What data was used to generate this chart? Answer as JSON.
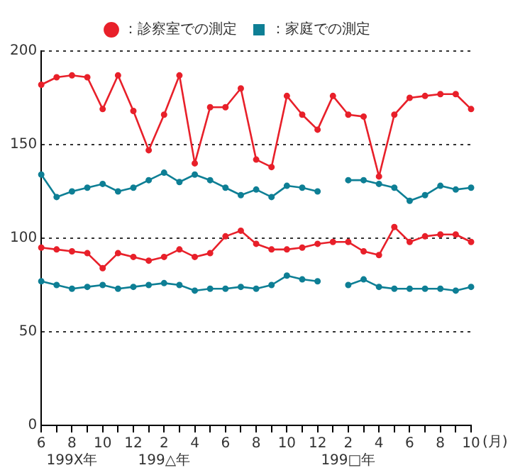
{
  "chart_data": {
    "type": "line",
    "categories": [
      "6",
      null,
      "8\n199X年",
      null,
      "10",
      null,
      "12",
      null,
      "2\n199△年",
      null,
      "4",
      null,
      "6",
      null,
      "8",
      null,
      "10",
      null,
      "12",
      null,
      "2\n199□年",
      null,
      "4",
      null,
      "6",
      null,
      "8",
      null,
      "10"
    ],
    "xlabel": "(月)",
    "series": [
      {
        "name": "：診察室での測定",
        "color": "#e8202a",
        "values": [
          182,
          186,
          187,
          186,
          169,
          187,
          168,
          147,
          166,
          187,
          140,
          170,
          170,
          180,
          142,
          138,
          176,
          166,
          158,
          176,
          166,
          165,
          133,
          166,
          175,
          176,
          177,
          177,
          169
        ]
      },
      {
        "color": "#e8202a",
        "values": [
          95,
          94,
          93,
          92,
          84,
          92,
          90,
          88,
          90,
          94,
          90,
          92,
          101,
          104,
          97,
          94,
          94,
          95,
          97,
          98,
          98,
          93,
          91,
          106,
          98,
          101,
          102,
          102,
          98
        ]
      },
      {
        "name": "：家庭での測定",
        "color": "#0e7f95",
        "values": [
          134,
          122,
          125,
          127,
          129,
          125,
          127,
          131,
          135,
          130,
          134,
          131,
          127,
          123,
          126,
          122,
          128,
          127,
          125,
          null,
          131,
          131,
          129,
          127,
          120,
          123,
          128,
          126,
          127
        ]
      },
      {
        "color": "#0e7f95",
        "values": [
          77,
          75,
          73,
          74,
          75,
          73,
          74,
          75,
          76,
          75,
          72,
          73,
          73,
          74,
          73,
          75,
          80,
          78,
          77,
          null,
          75,
          78,
          74,
          73,
          73,
          73,
          73,
          72,
          74
        ]
      }
    ],
    "ylim": [
      0,
      200
    ],
    "yticks": [
      0,
      50,
      100,
      150,
      200
    ],
    "grid": "y",
    "legend": "top",
    "marker": "circle",
    "line_style": "solid"
  }
}
